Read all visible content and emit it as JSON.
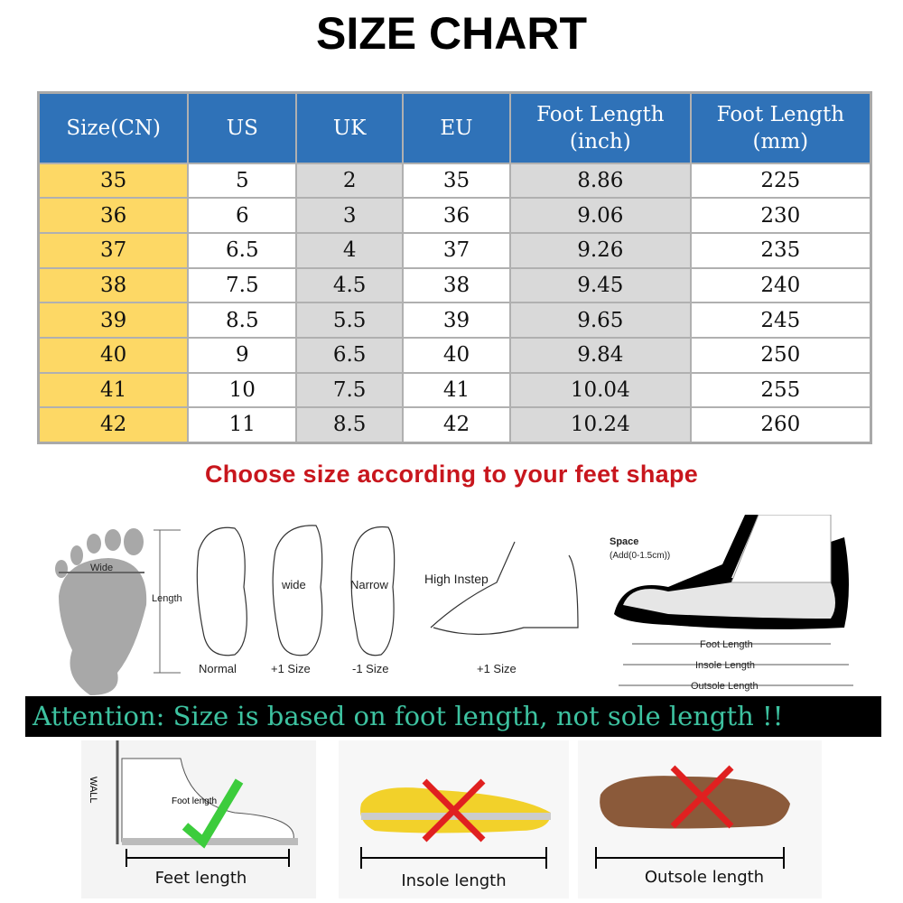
{
  "title": "SIZE CHART",
  "table": {
    "headers": [
      [
        "Size(CN)",
        ""
      ],
      [
        "US",
        ""
      ],
      [
        "UK",
        ""
      ],
      [
        "EU",
        ""
      ],
      [
        "Foot Length",
        "(inch)"
      ],
      [
        "Foot Length",
        "(mm)"
      ]
    ],
    "rows": [
      [
        "35",
        "5",
        "2",
        "35",
        "8.86",
        "225"
      ],
      [
        "36",
        "6",
        "3",
        "36",
        "9.06",
        "230"
      ],
      [
        "37",
        "6.5",
        "4",
        "37",
        "9.26",
        "235"
      ],
      [
        "38",
        "7.5",
        "4.5",
        "38",
        "9.45",
        "240"
      ],
      [
        "39",
        "8.5",
        "5.5",
        "39",
        "9.65",
        "245"
      ],
      [
        "40",
        "9",
        "6.5",
        "40",
        "9.84",
        "250"
      ],
      [
        "41",
        "10",
        "7.5",
        "41",
        "10.04",
        "255"
      ],
      [
        "42",
        "11",
        "8.5",
        "42",
        "10.24",
        "260"
      ]
    ]
  },
  "colors": {
    "header": "#2f72b8",
    "size_column": "#fdd865",
    "shaded_column": "#d9d9d9",
    "heading_red": "#c8161d",
    "attention_text": "#3dc2a0"
  },
  "heading": "Choose size according to your feet shape",
  "illustrations": {
    "wide": "Wide",
    "length": "Length",
    "normal": "Normal",
    "wide_label": "wide",
    "plus1": "+1 Size",
    "narrow": "Narrow",
    "minus1": "-1 Size",
    "high_instep": "High Instep",
    "plus1b": "+1 Size",
    "space": "Space",
    "space_add": "(Add(0-1.5cm))",
    "foot_length": "Foot Length",
    "insole_length": "Insole Length",
    "outsole_length": "Outsole Length"
  },
  "attention": "Attention: Size is based on foot length, not sole length !!",
  "photos": {
    "wall": "WALL",
    "foot_len": "Foot length",
    "feet": "Feet length",
    "insole": "Insole length",
    "outsole": "Outsole length"
  }
}
